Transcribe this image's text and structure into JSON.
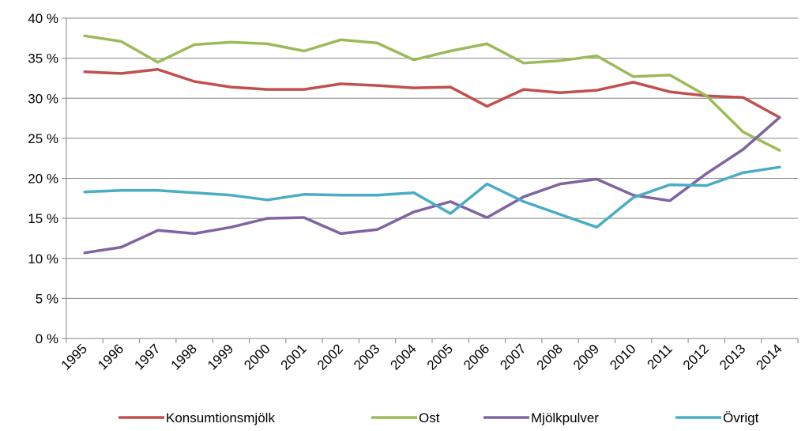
{
  "chart_data": {
    "type": "line",
    "title": "",
    "xlabel": "",
    "ylabel": "",
    "categories": [
      "1995",
      "1996",
      "1997",
      "1998",
      "1999",
      "2000",
      "2001",
      "2002",
      "2003",
      "2004",
      "2005",
      "2006",
      "2007",
      "2008",
      "2009",
      "2010",
      "2011",
      "2012",
      "2013",
      "2014"
    ],
    "ylim": [
      0,
      40
    ],
    "yticks": [
      "0 %",
      "5 %",
      "10 %",
      "15 %",
      "20 %",
      "25 %",
      "30 %",
      "35 %",
      "40 %"
    ],
    "grid": "horizontal",
    "legend_position": "bottom",
    "series": [
      {
        "name": "Konsumtionsmjölk",
        "color": "#c0504d",
        "values": [
          33.3,
          33.1,
          33.6,
          32.1,
          31.4,
          31.1,
          31.1,
          31.8,
          31.6,
          31.3,
          31.4,
          29.0,
          31.1,
          30.7,
          31.0,
          32.0,
          30.8,
          30.3,
          30.1,
          27.6
        ]
      },
      {
        "name": "Ost",
        "color": "#9bbb59",
        "values": [
          37.8,
          37.1,
          34.5,
          36.7,
          37.0,
          36.8,
          35.9,
          37.3,
          36.9,
          34.8,
          35.9,
          36.8,
          34.4,
          34.7,
          35.3,
          32.7,
          32.9,
          30.3,
          25.8,
          23.5
        ]
      },
      {
        "name": "Mjölkpulver",
        "color": "#8064a2",
        "values": [
          10.7,
          11.4,
          13.5,
          13.1,
          13.9,
          15.0,
          15.1,
          13.1,
          13.6,
          15.8,
          17.1,
          15.1,
          17.7,
          19.3,
          19.9,
          17.9,
          17.2,
          20.6,
          23.6,
          27.6
        ]
      },
      {
        "name": "Övrigt",
        "color": "#4bacc6",
        "values": [
          18.3,
          18.5,
          18.5,
          18.2,
          17.9,
          17.3,
          18.0,
          17.9,
          17.9,
          18.2,
          15.6,
          19.3,
          17.1,
          15.5,
          13.9,
          17.6,
          19.2,
          19.1,
          20.7,
          21.4
        ]
      }
    ]
  }
}
